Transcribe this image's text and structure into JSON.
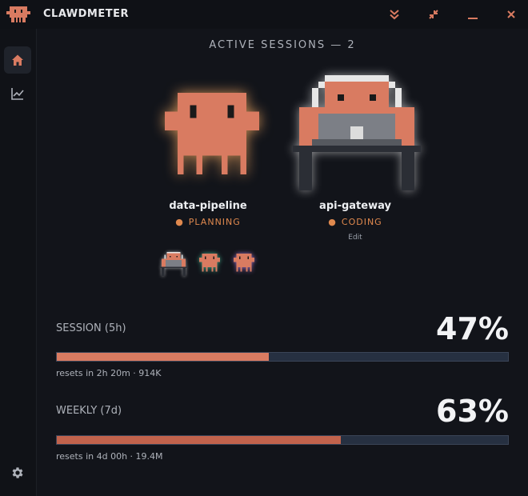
{
  "app": {
    "title": "CLAWDMETER",
    "logo_icon": "pixel-creature-icon",
    "accent_color": "#d97b61",
    "status_color": "#e0894e"
  },
  "window_controls": [
    {
      "name": "collapse",
      "icon": "double-chevron-down-icon"
    },
    {
      "name": "shrink",
      "icon": "compress-arrows-icon"
    },
    {
      "name": "minimize",
      "icon": "minimize-icon"
    },
    {
      "name": "close",
      "icon": "close-icon"
    }
  ],
  "sidebar": {
    "items": [
      {
        "name": "home",
        "icon": "home-icon",
        "active": true
      },
      {
        "name": "stats",
        "icon": "line-chart-icon",
        "active": false
      }
    ],
    "bottom": {
      "name": "settings",
      "icon": "gear-icon"
    }
  },
  "sessions": {
    "heading": "ACTIVE SESSIONS — 2",
    "items": [
      {
        "name": "data-pipeline",
        "status": "PLANNING",
        "glow": "#ffb066"
      },
      {
        "name": "api-gateway",
        "status": "CODING",
        "action": "Edit",
        "glow": "#ffffff"
      }
    ],
    "mini_creatures": [
      {
        "icon": "creature-at-desk-icon",
        "glow": "#ffffff"
      },
      {
        "icon": "creature-icon",
        "glow": "#48c9a0"
      },
      {
        "icon": "creature-icon",
        "glow": "#b37ad9"
      }
    ]
  },
  "meters": [
    {
      "label": "SESSION (5h)",
      "percent_text": "47%",
      "fraction": 0.47,
      "subtext": "resets in 2h 20m · 914K"
    },
    {
      "label": "WEEKLY (7d)",
      "percent_text": "63%",
      "fraction": 0.63,
      "subtext": "resets in 4d 00h · 19.4M"
    }
  ]
}
